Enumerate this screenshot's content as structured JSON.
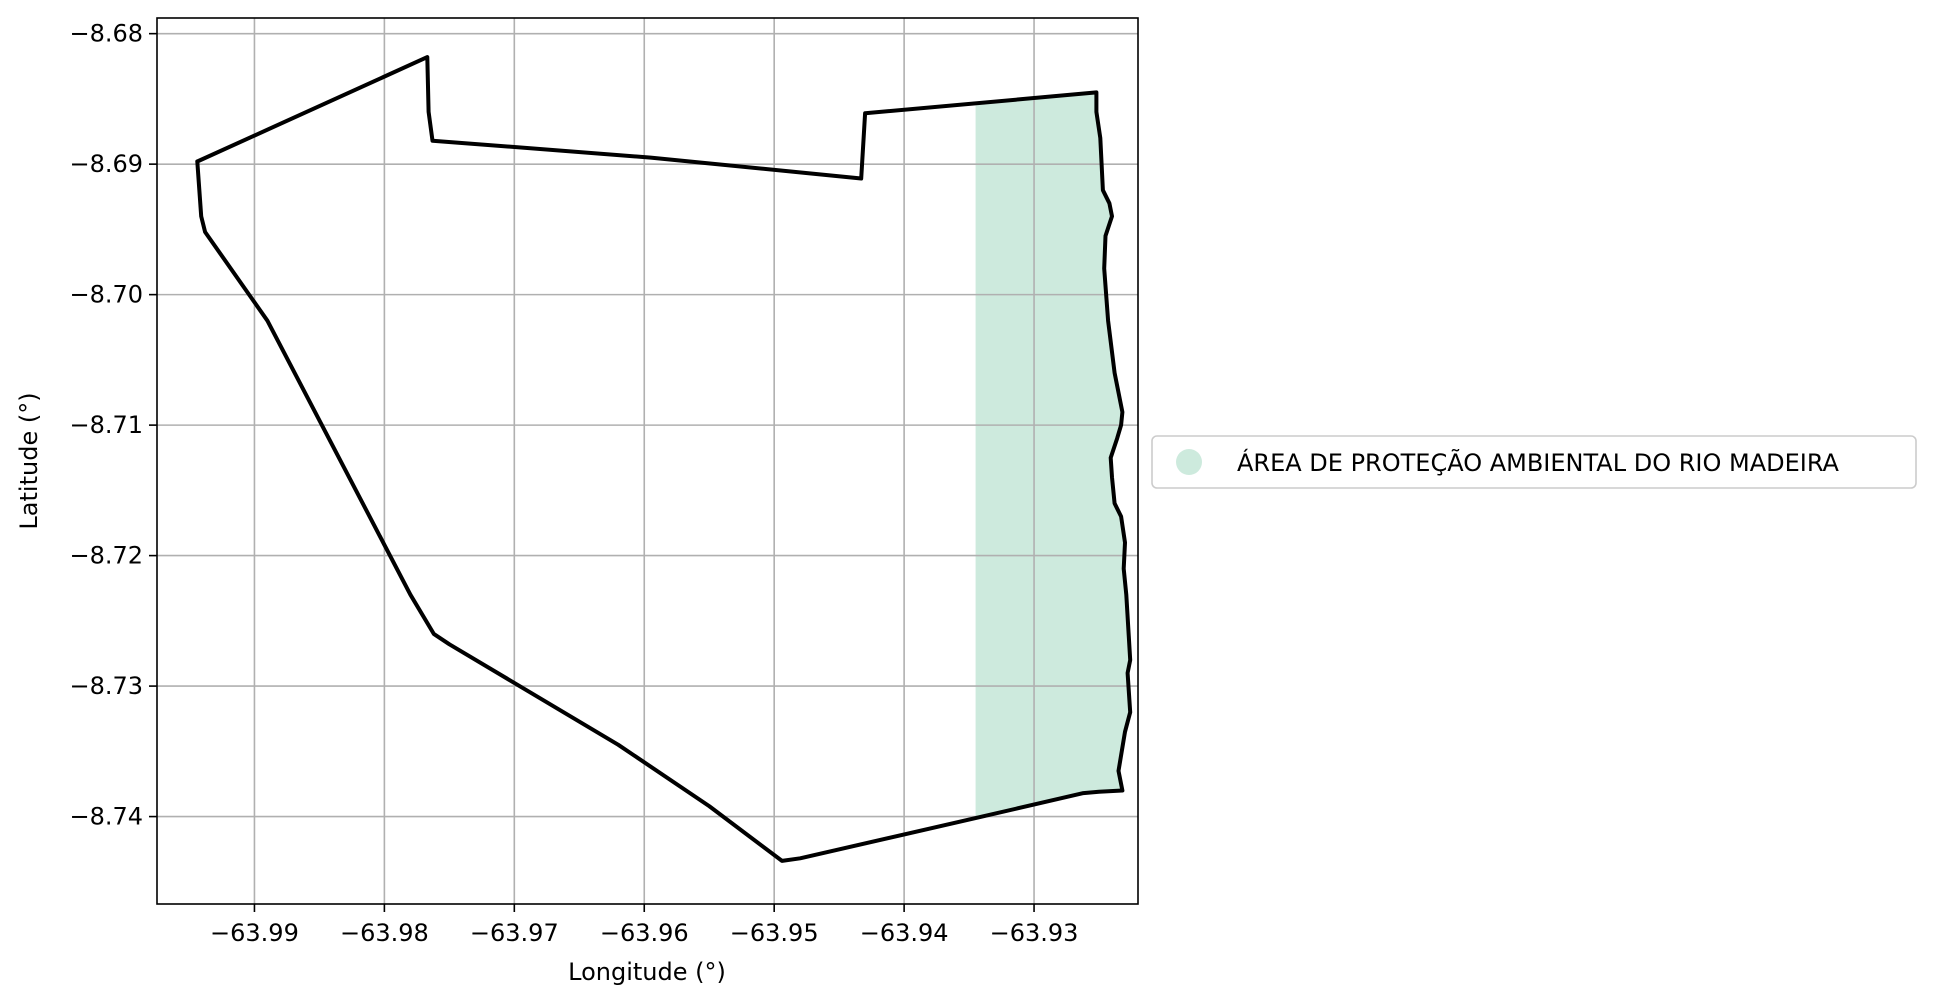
{
  "chart_data": {
    "type": "map",
    "xlabel": "Longitude (°)",
    "ylabel": "Latitude (°)",
    "xlim": [
      -63.9975,
      -63.922
    ],
    "ylim": [
      -8.7467,
      -8.6788
    ],
    "x_ticks": [
      -63.99,
      -63.98,
      -63.97,
      -63.96,
      -63.95,
      -63.94,
      -63.93
    ],
    "x_tick_labels": [
      "−63.99",
      "−63.98",
      "−63.97",
      "−63.96",
      "−63.95",
      "−63.94",
      "−63.93"
    ],
    "y_ticks": [
      -8.68,
      -8.69,
      -8.7,
      -8.71,
      -8.72,
      -8.73,
      -8.74
    ],
    "y_tick_labels": [
      "−8.68",
      "−8.69",
      "−8.70",
      "−8.71",
      "−8.72",
      "−8.73",
      "−8.74"
    ],
    "grid": true,
    "legend_position": "outside-right",
    "boundary_color": "#000000",
    "boundary": [
      [
        -63.9944,
        -8.6898
      ],
      [
        -63.9767,
        -8.6818
      ],
      [
        -63.9766,
        -8.686
      ],
      [
        -63.9763,
        -8.6882
      ],
      [
        -63.9595,
        -8.6895
      ],
      [
        -63.9433,
        -8.6911
      ],
      [
        -63.943,
        -8.6861
      ],
      [
        -63.9252,
        -8.6845
      ],
      [
        -63.9252,
        -8.686
      ],
      [
        -63.9249,
        -8.688
      ],
      [
        -63.9247,
        -8.692
      ],
      [
        -63.9242,
        -8.693
      ],
      [
        -63.924,
        -8.694
      ],
      [
        -63.9245,
        -8.6955
      ],
      [
        -63.9246,
        -8.698
      ],
      [
        -63.9243,
        -8.702
      ],
      [
        -63.9238,
        -8.706
      ],
      [
        -63.9232,
        -8.709
      ],
      [
        -63.9233,
        -8.71
      ],
      [
        -63.9236,
        -8.711
      ],
      [
        -63.9241,
        -8.7125
      ],
      [
        -63.924,
        -8.714
      ],
      [
        -63.9238,
        -8.716
      ],
      [
        -63.9233,
        -8.717
      ],
      [
        -63.923,
        -8.719
      ],
      [
        -63.9231,
        -8.721
      ],
      [
        -63.9229,
        -8.723
      ],
      [
        -63.9226,
        -8.728
      ],
      [
        -63.9228,
        -8.729
      ],
      [
        -63.9226,
        -8.732
      ],
      [
        -63.923,
        -8.7335
      ],
      [
        -63.9235,
        -8.7365
      ],
      [
        -63.9232,
        -8.738
      ],
      [
        -63.925,
        -8.7381
      ],
      [
        -63.9262,
        -8.7382
      ],
      [
        -63.934,
        -8.74
      ],
      [
        -63.948,
        -8.7432
      ],
      [
        -63.9494,
        -8.7434
      ],
      [
        -63.955,
        -8.7392
      ],
      [
        -63.962,
        -8.7345
      ],
      [
        -63.975,
        -8.7268
      ],
      [
        -63.9762,
        -8.726
      ],
      [
        -63.978,
        -8.723
      ],
      [
        -63.989,
        -8.702
      ],
      [
        -63.9938,
        -8.6952
      ],
      [
        -63.9941,
        -8.694
      ],
      [
        -63.9944,
        -8.6898
      ]
    ],
    "series": [
      {
        "name": "ÁREA DE PROTEÇÃO AMBIENTAL DO RIO MADEIRA",
        "color": "#cdeadd",
        "polygon": [
          [
            -63.9345,
            -8.6855
          ],
          [
            -63.9252,
            -8.6845
          ],
          [
            -63.9252,
            -8.686
          ],
          [
            -63.9249,
            -8.688
          ],
          [
            -63.9247,
            -8.692
          ],
          [
            -63.9242,
            -8.693
          ],
          [
            -63.924,
            -8.694
          ],
          [
            -63.9245,
            -8.6955
          ],
          [
            -63.9246,
            -8.698
          ],
          [
            -63.9243,
            -8.702
          ],
          [
            -63.9238,
            -8.706
          ],
          [
            -63.9232,
            -8.709
          ],
          [
            -63.9233,
            -8.71
          ],
          [
            -63.9236,
            -8.711
          ],
          [
            -63.9241,
            -8.7125
          ],
          [
            -63.924,
            -8.714
          ],
          [
            -63.9238,
            -8.716
          ],
          [
            -63.9233,
            -8.717
          ],
          [
            -63.923,
            -8.719
          ],
          [
            -63.9231,
            -8.721
          ],
          [
            -63.9229,
            -8.723
          ],
          [
            -63.9226,
            -8.728
          ],
          [
            -63.9228,
            -8.729
          ],
          [
            -63.9226,
            -8.732
          ],
          [
            -63.923,
            -8.7335
          ],
          [
            -63.9235,
            -8.7365
          ],
          [
            -63.9232,
            -8.738
          ],
          [
            -63.925,
            -8.7381
          ],
          [
            -63.9262,
            -8.7382
          ],
          [
            -63.934,
            -8.74
          ],
          [
            -63.9345,
            -8.74
          ]
        ]
      }
    ]
  }
}
